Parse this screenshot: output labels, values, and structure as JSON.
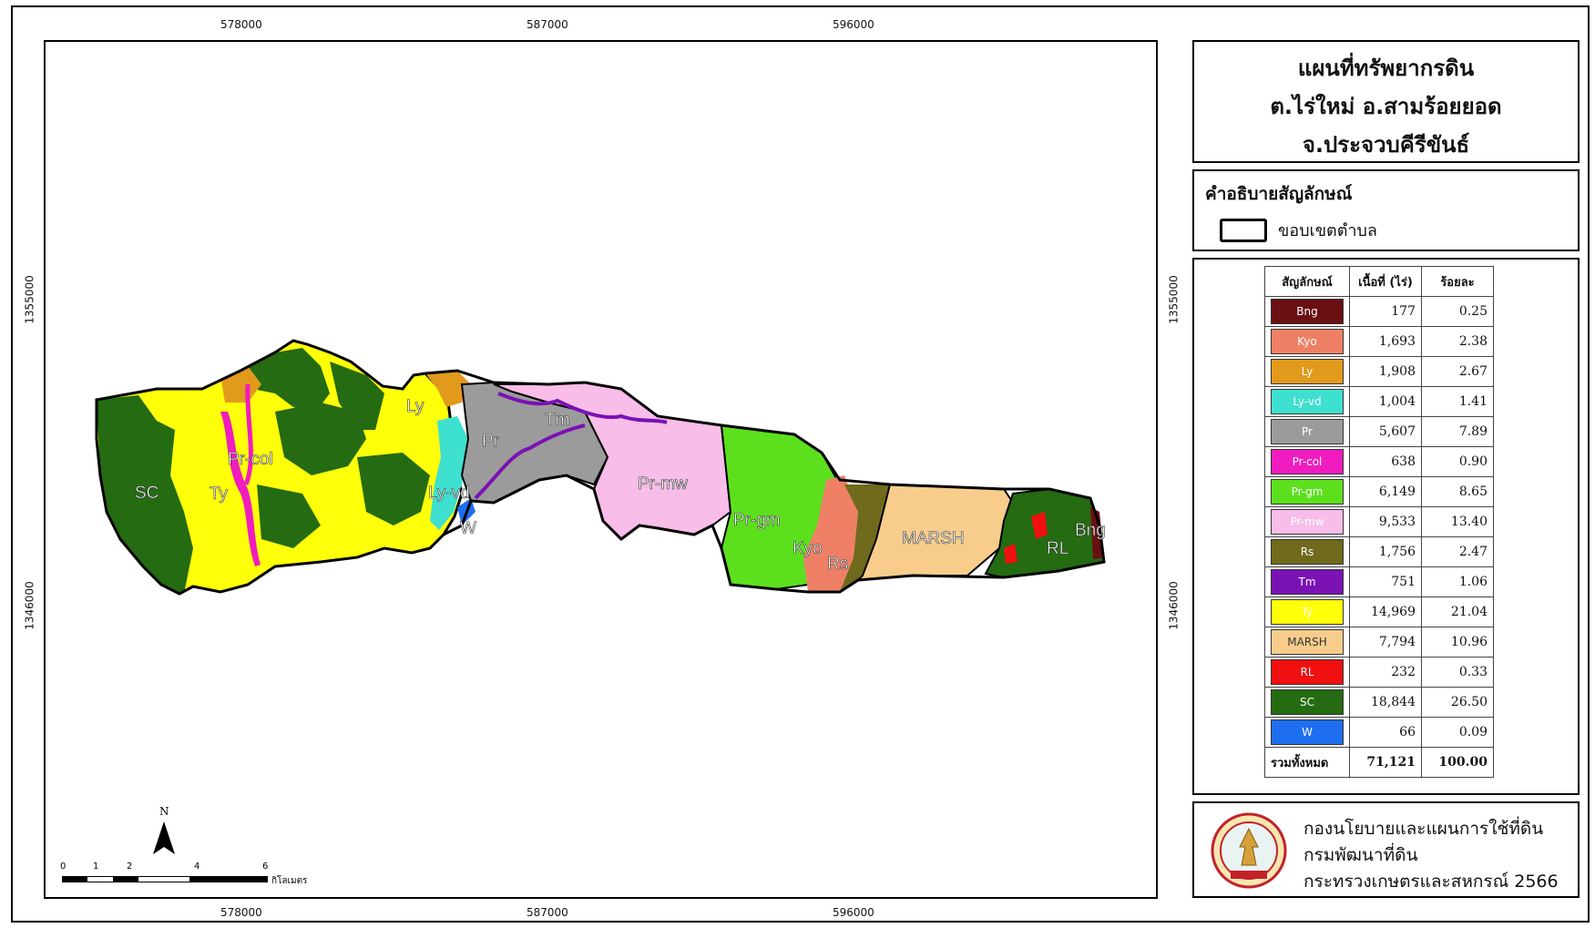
{
  "map": {
    "x_ticks": [
      "578000",
      "587000",
      "596000"
    ],
    "y_ticks": [
      "1355000",
      "1346000"
    ],
    "north_label": "N",
    "scale_numbers": [
      "0",
      "1",
      "2",
      "4",
      "6"
    ],
    "scale_unit": "กิโลเมตร",
    "labels": [
      {
        "id": "sc",
        "text": "SC"
      },
      {
        "id": "ty",
        "text": "Ty"
      },
      {
        "id": "prcol",
        "text": "Pr-col"
      },
      {
        "id": "ly",
        "text": "Ly"
      },
      {
        "id": "lyvd",
        "text": "Ly-vd"
      },
      {
        "id": "w",
        "text": "W"
      },
      {
        "id": "pr",
        "text": "Pr"
      },
      {
        "id": "tm",
        "text": "Tm"
      },
      {
        "id": "prmw",
        "text": "Pr-mw"
      },
      {
        "id": "prgm",
        "text": "Pr-gm"
      },
      {
        "id": "kyo",
        "text": "Kyo"
      },
      {
        "id": "rs",
        "text": "Rs"
      },
      {
        "id": "marsh",
        "text": "MARSH"
      },
      {
        "id": "rl",
        "text": "RL"
      },
      {
        "id": "bng",
        "text": "Bng"
      }
    ]
  },
  "title": {
    "line1": "แผนที่ทรัพยากรดิน",
    "line2": "ต.ไร่ใหม่ อ.สามร้อยยอด",
    "line3": "จ.ประจวบคีรีขันธ์"
  },
  "legend": {
    "heading": "คำอธิบายสัญลักษณ์",
    "boundary_label": "ขอบเขตตำบล"
  },
  "table": {
    "headers": [
      "สัญลักษณ์",
      "เนื้อที่ (ไร่)",
      "ร้อยละ"
    ],
    "rows": [
      {
        "symbol": "Bng",
        "area": "177",
        "percent": "0.25",
        "color": "#6b0f12",
        "text_color": "#ffffff"
      },
      {
        "symbol": "Kyo",
        "area": "1,693",
        "percent": "2.38",
        "color": "#ef8066",
        "text_color": "#ffffff"
      },
      {
        "symbol": "Ly",
        "area": "1,908",
        "percent": "2.67",
        "color": "#e29a1c",
        "text_color": "#ffffff"
      },
      {
        "symbol": "Ly-vd",
        "area": "1,004",
        "percent": "1.41",
        "color": "#3ee0d0",
        "text_color": "#ffffff"
      },
      {
        "symbol": "Pr",
        "area": "5,607",
        "percent": "7.89",
        "color": "#9b9b9b",
        "text_color": "#ffffff"
      },
      {
        "symbol": "Pr-col",
        "area": "638",
        "percent": "0.90",
        "color": "#f01cc0",
        "text_color": "#ffffff"
      },
      {
        "symbol": "Pr-gm",
        "area": "6,149",
        "percent": "8.65",
        "color": "#5ce01e",
        "text_color": "#ffffff"
      },
      {
        "symbol": "Pr-mw",
        "area": "9,533",
        "percent": "13.40",
        "color": "#f8bde8",
        "text_color": "#ffffff"
      },
      {
        "symbol": "Rs",
        "area": "1,756",
        "percent": "2.47",
        "color": "#6f6a1c",
        "text_color": "#ffffff"
      },
      {
        "symbol": "Tm",
        "area": "751",
        "percent": "1.06",
        "color": "#7a12b4",
        "text_color": "#ffffff"
      },
      {
        "symbol": "Ty",
        "area": "14,969",
        "percent": "21.04",
        "color": "#ffff0a",
        "text_color": "#ffffff"
      },
      {
        "symbol": "MARSH",
        "area": "7,794",
        "percent": "10.96",
        "color": "#f8cd8c",
        "text_color": "#333333"
      },
      {
        "symbol": "RL",
        "area": "232",
        "percent": "0.33",
        "color": "#f01010",
        "text_color": "#ffffff"
      },
      {
        "symbol": "SC",
        "area": "18,844",
        "percent": "26.50",
        "color": "#246b12",
        "text_color": "#ffffff"
      },
      {
        "symbol": "W",
        "area": "66",
        "percent": "0.09",
        "color": "#1e6ef0",
        "text_color": "#ffffff"
      }
    ],
    "total_label": "รวมทั้งหมด",
    "total_area": "71,121",
    "total_percent": "100.00"
  },
  "credit": {
    "line1": "กองนโยบายและแผนการใช้ที่ดิน",
    "line2": "กรมพัฒนาที่ดิน",
    "line3": "กระทรวงเกษตรและสหกรณ์ 2566",
    "logo_icon": "land-development-department-seal-icon"
  }
}
